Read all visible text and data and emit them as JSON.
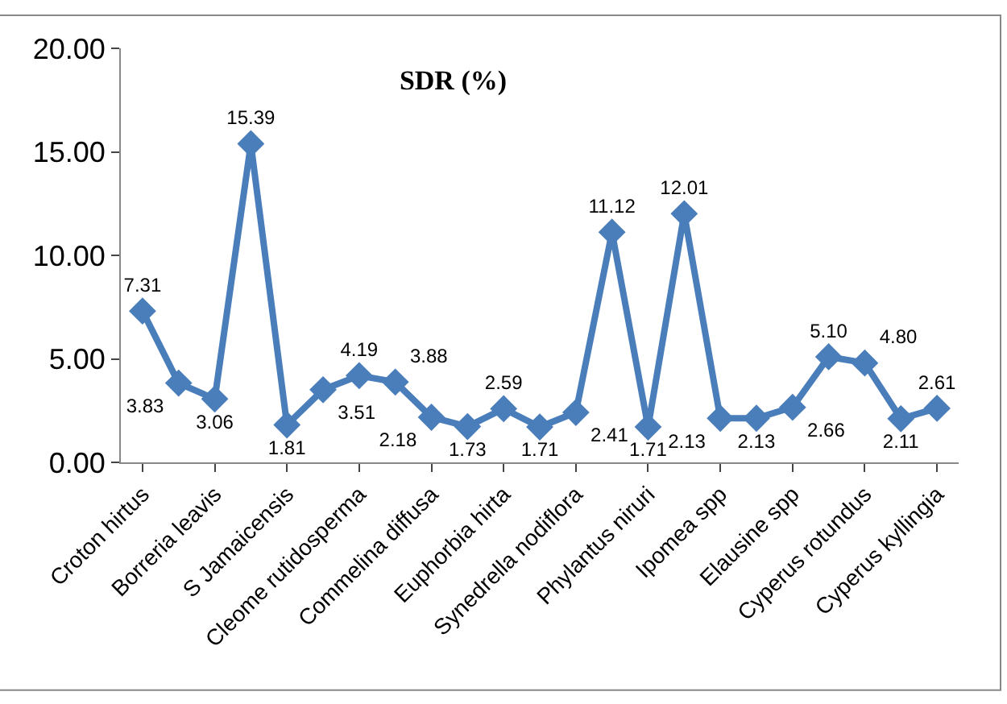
{
  "chart_data": {
    "type": "line",
    "title": "SDR (%)",
    "categories": [
      "Croton hirtus",
      null,
      "Borreria leavis",
      null,
      "S Jamaicensis",
      null,
      "Cleome rutidosperma",
      null,
      "Commelina diffusa",
      null,
      "Euphorbia hirta",
      null,
      "Synedrella nodiflora",
      null,
      "Phylantus niruri",
      null,
      "Ipomea spp",
      null,
      "Elausine spp",
      null,
      "Cyperus rotundus",
      null,
      "Cyperus kyllingia"
    ],
    "series": [
      {
        "color": "#4a7ebb",
        "values": [
          7.31,
          3.83,
          3.06,
          15.39,
          1.81,
          3.51,
          4.19,
          3.88,
          2.18,
          1.73,
          2.59,
          1.71,
          2.41,
          11.12,
          1.71,
          12.01,
          2.13,
          2.13,
          2.66,
          5.1,
          4.8,
          2.11,
          2.61
        ],
        "value_labels": [
          "7.31",
          "3.83",
          "3.06",
          "15.39",
          "1.81",
          "3.51",
          "4.19",
          "3.88",
          "2.18",
          "1.73",
          "2.59",
          "1.71",
          "2.41",
          "11.12",
          "1.71",
          "12.01",
          "2.13",
          "2.13",
          "2.66",
          "5.10",
          "4.80",
          "2.11",
          "2.61"
        ]
      }
    ],
    "ylim": [
      0,
      20
    ],
    "yticks": [
      {
        "value": 0,
        "label": "0.00"
      },
      {
        "value": 5,
        "label": "5.00"
      },
      {
        "value": 10,
        "label": "10.00"
      },
      {
        "value": 15,
        "label": "15.00"
      },
      {
        "value": 20,
        "label": "20.00"
      }
    ],
    "data_labels": true,
    "marker": "diamond",
    "line_style": "solid"
  }
}
